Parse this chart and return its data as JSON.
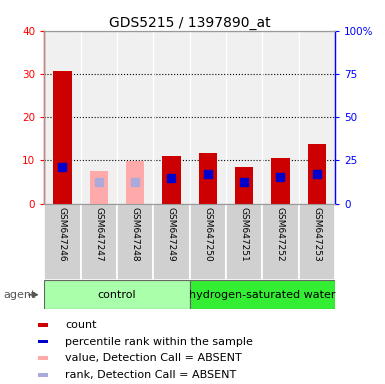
{
  "title": "GDS5215 / 1397890_at",
  "samples": [
    "GSM647246",
    "GSM647247",
    "GSM647248",
    "GSM647249",
    "GSM647250",
    "GSM647251",
    "GSM647252",
    "GSM647253"
  ],
  "bar_values": [
    30.7,
    7.5,
    9.8,
    11.0,
    11.8,
    8.5,
    10.5,
    13.8
  ],
  "bar_colors": [
    "#cc0000",
    "#ffaaaa",
    "#ffaaaa",
    "#cc0000",
    "#cc0000",
    "#cc0000",
    "#cc0000",
    "#cc0000"
  ],
  "rank_values": [
    21.0,
    12.5,
    12.5,
    15.0,
    17.0,
    12.5,
    15.5,
    17.0
  ],
  "rank_colors": [
    "#0000cc",
    "#aaaadd",
    "#aaaadd",
    "#0000cc",
    "#0000cc",
    "#0000cc",
    "#0000cc",
    "#0000cc"
  ],
  "ylim_left": [
    0,
    40
  ],
  "ylim_right": [
    0,
    100
  ],
  "yticks_left": [
    0,
    10,
    20,
    30,
    40
  ],
  "yticks_right": [
    0,
    25,
    50,
    75,
    100
  ],
  "ytick_labels_right": [
    "0",
    "25",
    "50",
    "75",
    "100%"
  ],
  "groups": [
    {
      "label": "control",
      "start": 0,
      "end": 3,
      "color": "#aaffaa"
    },
    {
      "label": "hydrogen-saturated water",
      "start": 4,
      "end": 7,
      "color": "#33ee33"
    }
  ],
  "agent_label": "agent",
  "plot_bg_color": "#f0f0f0",
  "label_bg_color": "#d0d0d0",
  "title_fontsize": 10,
  "tick_fontsize": 7.5,
  "sample_fontsize": 6.5,
  "legend_fontsize": 8,
  "group_fontsize": 8,
  "marker_size": 6
}
